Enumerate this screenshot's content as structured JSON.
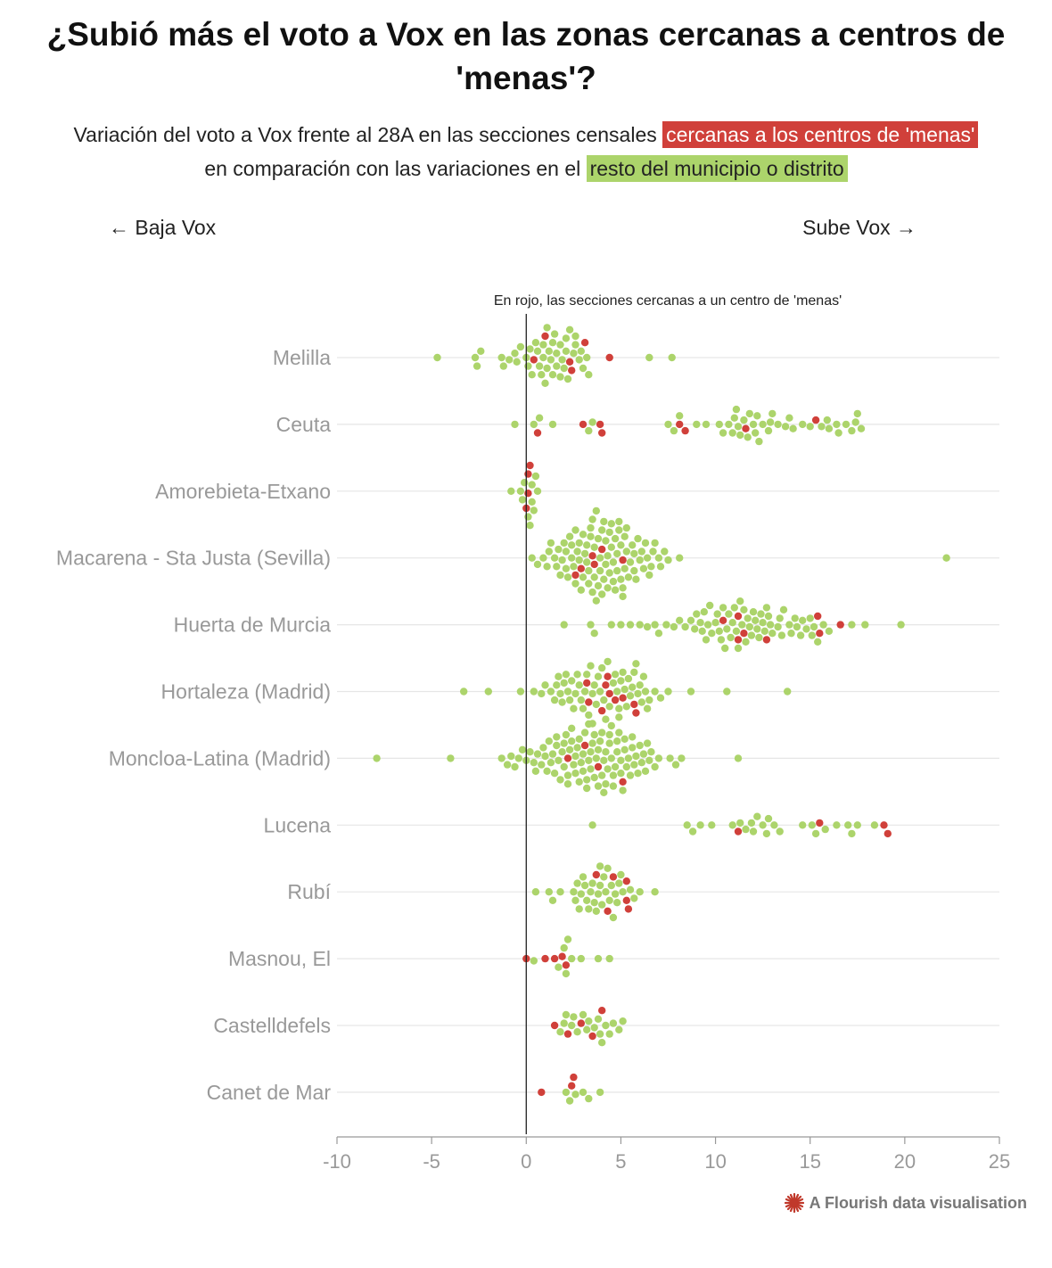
{
  "title": "¿Subió más el voto a Vox en las zonas cercanas a centros de 'menas'?",
  "subtitle": {
    "part1": "Variación del voto a Vox frente al 28A en las secciones censales",
    "highlight_red": "cercanas a los centros de 'menas'",
    "part2": "en comparación con las variaciones en el",
    "highlight_green": "resto del municipio o distrito"
  },
  "direction": {
    "left": "← Baja Vox",
    "right": "Sube Vox →"
  },
  "annotation": "En rojo, las secciones cercanas a un centro de 'menas'",
  "footer": "A Flourish data visualisation",
  "colors": {
    "near": "#d0403a",
    "rest": "#acd46b",
    "zero_line": "#222222",
    "grid": "#e6e6e6",
    "axis_text": "#999999"
  },
  "chart_data": {
    "type": "scatter",
    "subtype": "beeswarm",
    "xlim": [
      -10,
      25
    ],
    "x_ticks": [
      -10,
      -5,
      0,
      5,
      10,
      15,
      20,
      25
    ],
    "grid": true,
    "categories": [
      "Melilla",
      "Ceuta",
      "Amorebieta-Etxano",
      "Macarena - Sta Justa (Sevilla)",
      "Huerta de Murcia",
      "Hortaleza (Madrid)",
      "Moncloa-Latina (Madrid)",
      "Lucena",
      "Rubí",
      "Masnou, El",
      "Castelldefels",
      "Canet de Mar"
    ],
    "series": [
      {
        "name": "cercanas a los centros de 'menas'",
        "color": "#d0403a",
        "values": [
          [
            0.4,
            1.0,
            2.4,
            3.1,
            4.4,
            2.3
          ],
          [
            0.6,
            3.0,
            4.0,
            3.9,
            8.4,
            8.1,
            11.6,
            15.3
          ],
          [
            0.2,
            0.1,
            0.1,
            0.0
          ],
          [
            2.9,
            3.6,
            5.1,
            4.0,
            2.6,
            3.5
          ],
          [
            11.2,
            10.4,
            12.7,
            11.5,
            11.2,
            15.5,
            16.6,
            15.4
          ],
          [
            4.4,
            5.8,
            3.3,
            5.1,
            4.2,
            4.0,
            4.3,
            3.2,
            4.7,
            5.7
          ],
          [
            3.8,
            2.2,
            5.1,
            3.1
          ],
          [
            11.2,
            15.5,
            18.9,
            19.1
          ],
          [
            4.3,
            5.3,
            3.7,
            4.6,
            5.4,
            5.3
          ],
          [
            1.9,
            0.0,
            1.0,
            1.5,
            2.1
          ],
          [
            2.2,
            1.5,
            2.9,
            3.5,
            4.0
          ],
          [
            0.8,
            2.4,
            2.5
          ]
        ]
      },
      {
        "name": "resto del municipio o distrito",
        "color": "#acd46b",
        "values": [
          [
            -4.7,
            -2.7,
            -2.6,
            -2.4,
            -1.3,
            -1.2,
            -0.9,
            -0.5,
            -0.3,
            0.0,
            0.1,
            0.3,
            0.5,
            0.6,
            0.8,
            0.9,
            1.0,
            1.1,
            1.2,
            1.3,
            1.4,
            1.5,
            1.6,
            1.8,
            1.9,
            2.0,
            2.1,
            2.2,
            2.3,
            2.5,
            2.6,
            2.8,
            3.0,
            3.2,
            3.3,
            6.5,
            7.7,
            1.1,
            1.4,
            1.8,
            2.6,
            0.7,
            0.2,
            -0.6,
            2.9,
            2.1,
            0.9,
            1.6
          ],
          [
            -0.6,
            0.4,
            0.7,
            1.4,
            3.3,
            3.5,
            7.5,
            7.8,
            8.1,
            9.0,
            9.5,
            10.2,
            10.7,
            11.0,
            11.2,
            11.5,
            11.8,
            12.0,
            12.2,
            12.5,
            12.8,
            13.0,
            13.3,
            13.7,
            14.1,
            14.6,
            15.0,
            15.6,
            16.0,
            16.5,
            16.9,
            17.2,
            17.4,
            17.7,
            10.9,
            11.3,
            12.3,
            12.9,
            15.9,
            17.5,
            11.1,
            11.7,
            12.1,
            10.4,
            13.9,
            16.4
          ],
          [
            -0.8,
            -0.3,
            0.2,
            0.5,
            0.4,
            -0.2,
            0.1,
            0.3,
            0.6,
            -0.1,
            0.3
          ],
          [
            0.3,
            0.6,
            0.9,
            1.1,
            1.3,
            1.6,
            1.8,
            2.0,
            2.1,
            2.3,
            2.4,
            2.6,
            2.7,
            2.8,
            3.0,
            3.1,
            3.2,
            3.3,
            3.4,
            3.5,
            3.6,
            3.7,
            3.8,
            3.9,
            4.0,
            4.1,
            4.2,
            4.3,
            4.4,
            4.5,
            4.6,
            4.7,
            4.8,
            4.9,
            5.0,
            5.1,
            5.2,
            5.3,
            5.4,
            5.6,
            5.7,
            5.9,
            6.1,
            6.3,
            6.5,
            6.8,
            7.1,
            7.5,
            8.1,
            22.2,
            1.5,
            1.9,
            2.2,
            2.5,
            2.9,
            3.2,
            3.6,
            4.1,
            4.4,
            4.8,
            5.2,
            5.5,
            6.0,
            6.6,
            7.0,
            2.4,
            2.8,
            3.4,
            3.9,
            4.3,
            4.7,
            5.1,
            5.8,
            6.4,
            1.2,
            1.7,
            2.1,
            2.6,
            3.0,
            3.5,
            3.8,
            4.2,
            4.6,
            4.9,
            5.3,
            5.7,
            6.2,
            6.7,
            7.3,
            3.3,
            3.7,
            4.0,
            4.5,
            5.0
          ],
          [
            2.0,
            3.4,
            3.6,
            4.5,
            5.0,
            5.5,
            6.0,
            6.4,
            6.8,
            7.0,
            7.4,
            7.8,
            8.1,
            8.4,
            8.7,
            9.0,
            9.2,
            9.4,
            9.6,
            9.8,
            10.0,
            10.2,
            10.4,
            10.6,
            10.8,
            11.0,
            11.2,
            11.4,
            11.6,
            11.8,
            12.0,
            12.2,
            12.4,
            12.6,
            12.8,
            13.0,
            13.3,
            13.6,
            13.9,
            14.2,
            14.5,
            14.8,
            15.1,
            15.4,
            15.7,
            16.0,
            17.2,
            17.9,
            19.8,
            8.9,
            9.3,
            9.7,
            10.1,
            10.5,
            10.9,
            11.3,
            11.7,
            12.1,
            12.5,
            12.9,
            13.4,
            14.0,
            14.6,
            15.2,
            9.5,
            10.3,
            11.1,
            11.9,
            12.7,
            13.5,
            14.3,
            15.0,
            10.7,
            11.5,
            12.3
          ],
          [
            -3.3,
            -2.0,
            -0.3,
            0.4,
            0.8,
            1.0,
            1.3,
            1.5,
            1.7,
            1.9,
            2.1,
            2.3,
            2.5,
            2.7,
            2.9,
            3.1,
            3.3,
            3.5,
            3.7,
            3.9,
            4.1,
            4.3,
            4.5,
            4.7,
            4.9,
            5.1,
            5.3,
            5.5,
            5.7,
            5.9,
            6.1,
            6.3,
            6.5,
            6.8,
            7.1,
            7.5,
            8.7,
            10.6,
            13.8,
            1.6,
            2.0,
            2.4,
            2.8,
            3.2,
            3.6,
            4.0,
            4.4,
            4.8,
            5.2,
            5.6,
            6.0,
            6.4,
            2.2,
            2.6,
            3.0,
            3.4,
            3.8,
            4.2,
            4.6,
            5.0,
            5.4,
            5.8,
            1.8,
            3.5,
            4.9,
            6.2
          ],
          [
            -7.9,
            -4.0,
            -1.3,
            -1.0,
            -0.8,
            -0.6,
            -0.4,
            -0.2,
            0.0,
            0.2,
            0.4,
            0.6,
            0.8,
            1.0,
            1.2,
            1.4,
            1.6,
            1.8,
            2.0,
            2.2,
            2.4,
            2.6,
            2.8,
            3.0,
            3.2,
            3.4,
            3.6,
            3.8,
            4.0,
            4.2,
            4.4,
            4.6,
            4.8,
            5.0,
            5.2,
            5.4,
            5.6,
            5.8,
            6.0,
            6.2,
            6.4,
            6.6,
            6.8,
            7.0,
            7.6,
            7.9,
            8.2,
            11.2,
            0.5,
            0.9,
            1.3,
            1.7,
            2.1,
            2.5,
            2.9,
            3.3,
            3.7,
            4.1,
            4.5,
            4.9,
            5.3,
            5.7,
            6.1,
            6.5,
            1.1,
            1.5,
            1.9,
            2.3,
            2.7,
            3.1,
            3.5,
            3.9,
            4.3,
            4.7,
            5.1,
            5.5,
            5.9,
            6.3,
            2.0,
            2.4,
            2.8,
            3.2,
            3.6,
            4.0,
            4.4,
            4.8,
            5.2,
            5.6,
            1.6,
            2.6,
            3.4,
            4.2,
            5.0,
            3.0,
            3.8,
            4.6,
            2.2,
            3.3,
            4.1
          ],
          [
            3.5,
            8.5,
            8.8,
            9.2,
            9.8,
            10.9,
            11.3,
            11.6,
            11.9,
            12.2,
            12.5,
            12.8,
            13.1,
            13.4,
            14.6,
            15.1,
            15.8,
            16.4,
            17.0,
            17.5,
            18.4,
            12.0,
            12.7,
            15.3,
            17.2
          ],
          [
            0.5,
            1.2,
            1.4,
            1.8,
            2.5,
            2.7,
            2.9,
            3.1,
            3.3,
            3.5,
            3.7,
            3.9,
            4.1,
            4.3,
            4.5,
            4.7,
            4.9,
            5.1,
            5.5,
            5.7,
            6.0,
            6.8,
            2.6,
            3.0,
            3.4,
            3.8,
            4.2,
            4.6,
            5.0,
            3.2,
            3.6,
            4.0,
            4.4,
            4.8,
            2.8,
            3.9
          ],
          [
            0.4,
            1.7,
            2.0,
            2.2,
            2.4,
            2.9,
            3.8,
            4.4,
            2.1
          ],
          [
            1.8,
            2.1,
            2.4,
            2.7,
            3.0,
            3.3,
            3.6,
            3.8,
            4.0,
            4.2,
            4.4,
            4.9,
            5.1,
            2.5,
            3.2,
            3.9,
            2.0,
            4.6
          ],
          [
            2.1,
            2.3,
            2.6,
            3.0,
            3.3,
            3.9
          ]
        ]
      }
    ]
  }
}
